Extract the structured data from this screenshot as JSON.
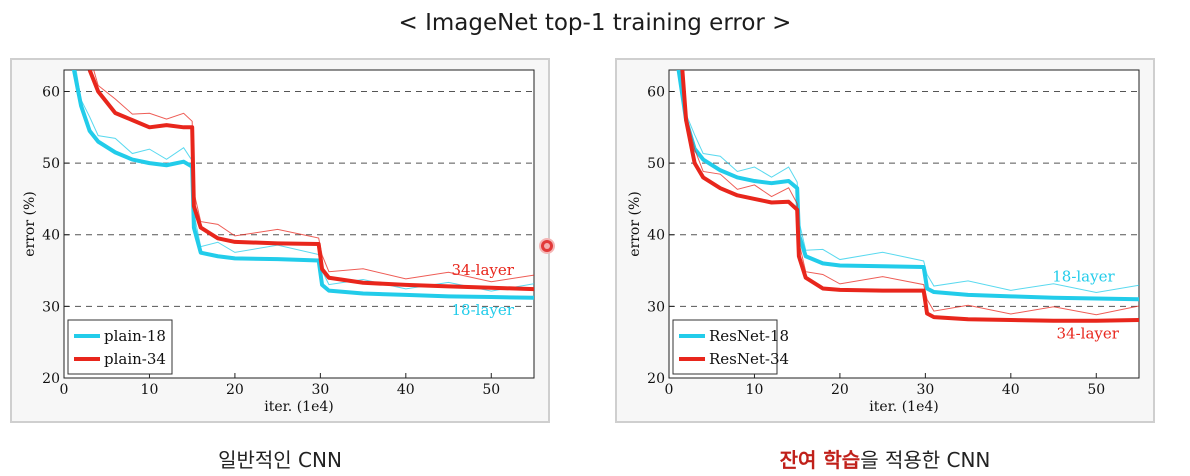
{
  "slide": {
    "title": "< ImageNet top-1 training error >",
    "caption_left": "일반적인 CNN",
    "caption_right_highlight": "잔여 학습",
    "caption_right_rest": "을 적용한 CNN"
  },
  "colors": {
    "cyan": "#22ccea",
    "red": "#e8261c",
    "highlight": "#c0201a"
  },
  "chart_data": [
    {
      "type": "line",
      "title": "",
      "xlabel": "iter. (1e4)",
      "ylabel": "error (%)",
      "xlim": [
        0,
        55
      ],
      "ylim": [
        20,
        63
      ],
      "xticks": [
        0,
        10,
        20,
        30,
        40,
        50
      ],
      "yticks": [
        20,
        30,
        40,
        50,
        60
      ],
      "grid": "horizontal dashed",
      "legend_position": "bottom-left",
      "legend": [
        "plain-18",
        "plain-34"
      ],
      "annotations": [
        {
          "text": "34-layer",
          "x": 49,
          "y": 34.4,
          "color": "red"
        },
        {
          "text": "18-layer",
          "x": 49,
          "y": 28.8,
          "color": "cyan"
        }
      ],
      "series": [
        {
          "name": "plain-18",
          "color": "cyan",
          "x": [
            1,
            2,
            3,
            4,
            6,
            8,
            10,
            12,
            14,
            15,
            15.2,
            16,
            18,
            20,
            25,
            29.8,
            30.2,
            31,
            35,
            40,
            45,
            50,
            55
          ],
          "y": [
            64,
            58,
            54.5,
            53,
            51.5,
            50.5,
            50,
            49.7,
            50.2,
            49.5,
            41,
            37.5,
            37,
            36.7,
            36.6,
            36.4,
            33,
            32.2,
            31.8,
            31.6,
            31.4,
            31.3,
            31.2
          ]
        },
        {
          "name": "plain-34",
          "color": "red",
          "x": [
            3,
            4,
            6,
            8,
            10,
            12,
            14,
            15,
            15.2,
            16,
            18,
            20,
            25,
            29.8,
            30.2,
            31,
            35,
            40,
            45,
            50,
            55
          ],
          "y": [
            63,
            60,
            57,
            56,
            55,
            55.3,
            55,
            55,
            44,
            41,
            39.5,
            39,
            38.8,
            38.7,
            35.2,
            34,
            33.3,
            33,
            32.8,
            32.6,
            32.4
          ]
        }
      ]
    },
    {
      "type": "line",
      "title": "",
      "xlabel": "iter. (1e4)",
      "ylabel": "error (%)",
      "xlim": [
        0,
        55
      ],
      "ylim": [
        20,
        63
      ],
      "xticks": [
        0,
        10,
        20,
        30,
        40,
        50
      ],
      "yticks": [
        20,
        30,
        40,
        50,
        60
      ],
      "grid": "horizontal dashed",
      "legend_position": "bottom-left",
      "legend": [
        "ResNet-18",
        "ResNet-34"
      ],
      "annotations": [
        {
          "text": "18-layer",
          "x": 48.5,
          "y": 33.5,
          "color": "cyan"
        },
        {
          "text": "34-layer",
          "x": 49,
          "y": 25.5,
          "color": "red"
        }
      ],
      "series": [
        {
          "name": "ResNet-18",
          "color": "cyan",
          "x": [
            1,
            2,
            3,
            4,
            6,
            8,
            10,
            12,
            14,
            15,
            15.2,
            16,
            18,
            20,
            25,
            29.8,
            30.2,
            31,
            35,
            40,
            45,
            50,
            55
          ],
          "y": [
            64,
            56,
            52,
            50.5,
            49,
            48,
            47.5,
            47.2,
            47.5,
            46.5,
            40,
            37,
            36,
            35.7,
            35.6,
            35.5,
            32.5,
            32,
            31.6,
            31.4,
            31.2,
            31.1,
            31
          ]
        },
        {
          "name": "ResNet-34",
          "color": "red",
          "x": [
            1.5,
            2,
            3,
            4,
            6,
            8,
            10,
            12,
            14,
            15,
            15.2,
            16,
            18,
            20,
            25,
            29.8,
            30.2,
            31,
            35,
            40,
            45,
            50,
            55
          ],
          "y": [
            64,
            56,
            50,
            48,
            46.5,
            45.5,
            45,
            44.5,
            44.6,
            43.5,
            37,
            34,
            32.5,
            32.3,
            32.2,
            32.2,
            29,
            28.5,
            28.2,
            28.1,
            28,
            28,
            28.1
          ]
        }
      ]
    }
  ]
}
